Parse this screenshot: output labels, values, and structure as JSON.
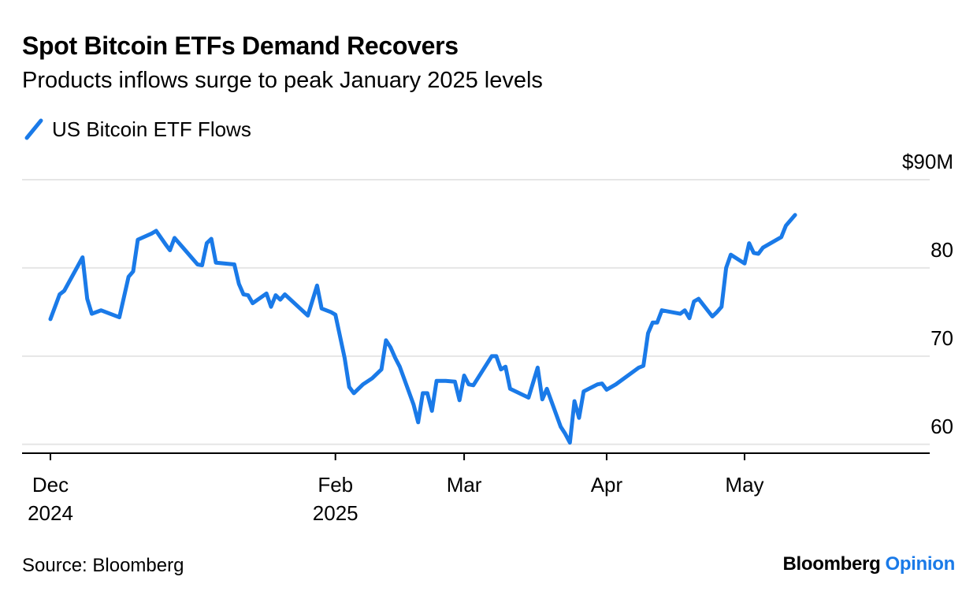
{
  "title": "Spot Bitcoin ETFs Demand Recovers",
  "subtitle": "Products inflows surge to peak January 2025 levels",
  "source": "Source: Bloomberg",
  "brand": {
    "name": "Bloomberg",
    "suffix": "Opinion"
  },
  "colors": {
    "series": "#1a7ae8",
    "grid": "#e6e6e6",
    "axis": "#000000"
  },
  "chart_data": {
    "type": "line",
    "title": "Spot Bitcoin ETFs Demand Recovers",
    "subtitle": "Products inflows surge to peak January 2025 levels",
    "xlabel": "",
    "ylabel": "",
    "y_unit": "$M",
    "ylim": [
      59,
      90
    ],
    "y_ticks": [
      {
        "value": 90,
        "label": "$90M"
      },
      {
        "value": 80,
        "label": "80"
      },
      {
        "value": 70,
        "label": "70"
      },
      {
        "value": 60,
        "label": "60"
      }
    ],
    "x_ticks": [
      {
        "date": "2024-12-01",
        "label": "Dec",
        "sublabel": "2024"
      },
      {
        "date": "2025-02-01",
        "label": "Feb",
        "sublabel": "2025"
      },
      {
        "date": "2025-03-01",
        "label": "Mar",
        "sublabel": ""
      },
      {
        "date": "2025-04-01",
        "label": "Apr",
        "sublabel": ""
      },
      {
        "date": "2025-05-01",
        "label": "May",
        "sublabel": ""
      }
    ],
    "x_range": [
      "2024-12-01",
      "2025-05-31"
    ],
    "grid": true,
    "legend_position": "top-left",
    "series": [
      {
        "name": "US Bitcoin ETF Flows",
        "points": [
          [
            "2024-12-01",
            74.2
          ],
          [
            "2024-12-03",
            77.0
          ],
          [
            "2024-12-04",
            77.4
          ],
          [
            "2024-12-08",
            81.2
          ],
          [
            "2024-12-09",
            76.5
          ],
          [
            "2024-12-10",
            74.8
          ],
          [
            "2024-12-12",
            75.2
          ],
          [
            "2024-12-16",
            74.4
          ],
          [
            "2024-12-18",
            79.0
          ],
          [
            "2024-12-19",
            79.6
          ],
          [
            "2024-12-20",
            83.2
          ],
          [
            "2024-12-23",
            83.9
          ],
          [
            "2024-12-24",
            84.2
          ],
          [
            "2024-12-26",
            82.7
          ],
          [
            "2024-12-27",
            82.0
          ],
          [
            "2024-12-28",
            83.4
          ],
          [
            "2024-12-30",
            82.2
          ],
          [
            "2025-01-02",
            80.4
          ],
          [
            "2025-01-03",
            80.3
          ],
          [
            "2025-01-04",
            82.8
          ],
          [
            "2025-01-05",
            83.3
          ],
          [
            "2025-01-06",
            80.6
          ],
          [
            "2025-01-10",
            80.4
          ],
          [
            "2025-01-11",
            78.2
          ],
          [
            "2025-01-12",
            77.0
          ],
          [
            "2025-01-13",
            76.9
          ],
          [
            "2025-01-14",
            76.0
          ],
          [
            "2025-01-17",
            77.1
          ],
          [
            "2025-01-18",
            75.6
          ],
          [
            "2025-01-19",
            76.9
          ],
          [
            "2025-01-20",
            76.4
          ],
          [
            "2025-01-21",
            77.0
          ],
          [
            "2025-01-26",
            74.6
          ],
          [
            "2025-01-28",
            78.0
          ],
          [
            "2025-01-29",
            75.4
          ],
          [
            "2025-01-31",
            75.0
          ],
          [
            "2025-02-01",
            74.7
          ],
          [
            "2025-02-03",
            69.8
          ],
          [
            "2025-02-04",
            66.5
          ],
          [
            "2025-02-05",
            65.8
          ],
          [
            "2025-02-07",
            66.8
          ],
          [
            "2025-02-09",
            67.5
          ],
          [
            "2025-02-11",
            68.5
          ],
          [
            "2025-02-12",
            71.8
          ],
          [
            "2025-02-13",
            71.0
          ],
          [
            "2025-02-14",
            69.8
          ],
          [
            "2025-02-15",
            68.8
          ],
          [
            "2025-02-18",
            64.5
          ],
          [
            "2025-02-19",
            62.5
          ],
          [
            "2025-02-20",
            65.8
          ],
          [
            "2025-02-21",
            65.8
          ],
          [
            "2025-02-22",
            63.8
          ],
          [
            "2025-02-23",
            67.2
          ],
          [
            "2025-02-25",
            67.2
          ],
          [
            "2025-02-27",
            67.1
          ],
          [
            "2025-02-28",
            65.0
          ],
          [
            "2025-03-01",
            67.8
          ],
          [
            "2025-03-02",
            66.8
          ],
          [
            "2025-03-03",
            66.7
          ],
          [
            "2025-03-07",
            70.0
          ],
          [
            "2025-03-08",
            70.0
          ],
          [
            "2025-03-09",
            68.5
          ],
          [
            "2025-03-10",
            68.8
          ],
          [
            "2025-03-11",
            66.3
          ],
          [
            "2025-03-15",
            65.3
          ],
          [
            "2025-03-17",
            68.7
          ],
          [
            "2025-03-18",
            65.1
          ],
          [
            "2025-03-19",
            66.3
          ],
          [
            "2025-03-22",
            62.0
          ],
          [
            "2025-03-23",
            61.2
          ],
          [
            "2025-03-24",
            60.2
          ],
          [
            "2025-03-25",
            64.9
          ],
          [
            "2025-03-26",
            63.0
          ],
          [
            "2025-03-27",
            66.0
          ],
          [
            "2025-03-30",
            66.8
          ],
          [
            "2025-03-31",
            66.9
          ],
          [
            "2025-04-01",
            66.2
          ],
          [
            "2025-04-03",
            66.8
          ],
          [
            "2025-04-08",
            68.7
          ],
          [
            "2025-04-09",
            68.9
          ],
          [
            "2025-04-10",
            72.6
          ],
          [
            "2025-04-11",
            73.8
          ],
          [
            "2025-04-12",
            73.8
          ],
          [
            "2025-04-13",
            75.2
          ],
          [
            "2025-04-17",
            74.8
          ],
          [
            "2025-04-18",
            75.2
          ],
          [
            "2025-04-19",
            74.3
          ],
          [
            "2025-04-20",
            76.2
          ],
          [
            "2025-04-21",
            76.5
          ],
          [
            "2025-04-24",
            74.5
          ],
          [
            "2025-04-25",
            75.0
          ],
          [
            "2025-04-26",
            75.6
          ],
          [
            "2025-04-27",
            80.0
          ],
          [
            "2025-04-28",
            81.5
          ],
          [
            "2025-05-01",
            80.5
          ],
          [
            "2025-05-02",
            82.8
          ],
          [
            "2025-05-03",
            81.7
          ],
          [
            "2025-05-04",
            81.6
          ],
          [
            "2025-05-05",
            82.3
          ],
          [
            "2025-05-09",
            83.5
          ],
          [
            "2025-05-10",
            84.8
          ],
          [
            "2025-05-12",
            86.0
          ]
        ]
      }
    ]
  }
}
